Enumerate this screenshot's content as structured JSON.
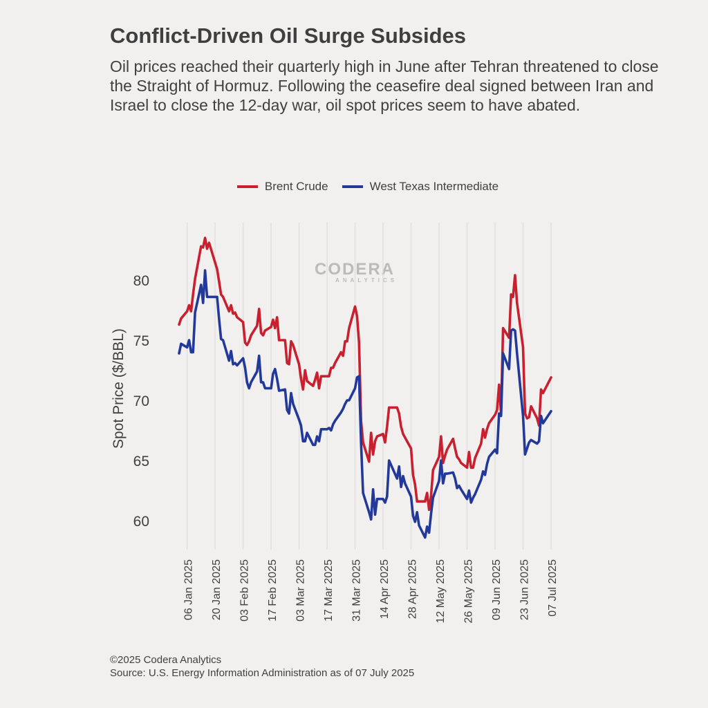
{
  "title": "Conflict-Driven Oil Surge Subsides",
  "subtitle": "Oil prices reached their quarterly high in June after Tehran threatened to close the Straight of Hormuz. Following the ceasefire deal signed between Iran and Israel to close the 12-day war, oil spot prices seem to have abated.",
  "footer": {
    "copyright": "©2025 Codera Analytics",
    "source": "Source: U.S. Energy Information Administration as of 07 July 2025"
  },
  "watermark": {
    "main": "CODERA",
    "sub": "ANALYTICS"
  },
  "colors": {
    "brent": "#c8202f",
    "wti": "#23399a",
    "grid": "#dcdcdc",
    "background": "#f2f0ef"
  },
  "chart_data": {
    "type": "line",
    "xlabel": "",
    "ylabel": "Spot Price ($/BBL)",
    "ylim": [
      58,
      85
    ],
    "yticks": [
      60,
      65,
      70,
      75,
      80
    ],
    "xlim": [
      "2025-01-02",
      "2025-07-07"
    ],
    "xticks": [
      {
        "date": "2025-01-06",
        "label": "06 Jan 2025"
      },
      {
        "date": "2025-01-20",
        "label": "20 Jan 2025"
      },
      {
        "date": "2025-02-03",
        "label": "03 Feb 2025"
      },
      {
        "date": "2025-02-17",
        "label": "17 Feb 2025"
      },
      {
        "date": "2025-03-03",
        "label": "03 Mar 2025"
      },
      {
        "date": "2025-03-17",
        "label": "17 Mar 2025"
      },
      {
        "date": "2025-03-31",
        "label": "31 Mar 2025"
      },
      {
        "date": "2025-04-14",
        "label": "14 Apr 2025"
      },
      {
        "date": "2025-04-28",
        "label": "28 Apr 2025"
      },
      {
        "date": "2025-05-12",
        "label": "12 May 2025"
      },
      {
        "date": "2025-05-26",
        "label": "26 May 2025"
      },
      {
        "date": "2025-06-09",
        "label": "09 Jun 2025"
      },
      {
        "date": "2025-06-23",
        "label": "23 Jun 2025"
      },
      {
        "date": "2025-07-07",
        "label": "07 Jul 2025"
      }
    ],
    "grid": "vertical",
    "legend_position": "top-center",
    "series": [
      {
        "name": "Brent Crude",
        "color": "#c8202f",
        "points": [
          [
            "2025-01-02",
            76.3
          ],
          [
            "2025-01-03",
            76.8
          ],
          [
            "2025-01-06",
            77.4
          ],
          [
            "2025-01-07",
            77.9
          ],
          [
            "2025-01-08",
            77.4
          ],
          [
            "2025-01-09",
            78.8
          ],
          [
            "2025-01-10",
            80.1
          ],
          [
            "2025-01-13",
            82.8
          ],
          [
            "2025-01-14",
            82.7
          ],
          [
            "2025-01-15",
            83.5
          ],
          [
            "2025-01-16",
            82.6
          ],
          [
            "2025-01-17",
            83.1
          ],
          [
            "2025-01-21",
            80.9
          ],
          [
            "2025-01-22",
            79.9
          ],
          [
            "2025-01-23",
            78.8
          ],
          [
            "2025-01-24",
            78.6
          ],
          [
            "2025-01-27",
            77.4
          ],
          [
            "2025-01-28",
            77.9
          ],
          [
            "2025-01-29",
            77.2
          ],
          [
            "2025-01-30",
            77.3
          ],
          [
            "2025-01-31",
            76.9
          ],
          [
            "2025-02-03",
            76.5
          ],
          [
            "2025-02-04",
            74.8
          ],
          [
            "2025-02-05",
            74.6
          ],
          [
            "2025-02-06",
            74.9
          ],
          [
            "2025-02-07",
            75.4
          ],
          [
            "2025-02-10",
            76.2
          ],
          [
            "2025-02-11",
            77.6
          ],
          [
            "2025-02-12",
            75.6
          ],
          [
            "2025-02-13",
            75.4
          ],
          [
            "2025-02-14",
            75.8
          ],
          [
            "2025-02-17",
            76.1
          ],
          [
            "2025-02-18",
            76.7
          ],
          [
            "2025-02-19",
            76.0
          ],
          [
            "2025-02-20",
            76.9
          ],
          [
            "2025-02-21",
            75.0
          ],
          [
            "2025-02-24",
            75.0
          ],
          [
            "2025-02-25",
            73.1
          ],
          [
            "2025-02-26",
            73.0
          ],
          [
            "2025-02-27",
            74.9
          ],
          [
            "2025-02-28",
            74.6
          ],
          [
            "2025-03-03",
            73.0
          ],
          [
            "2025-03-04",
            71.8
          ],
          [
            "2025-03-05",
            70.9
          ],
          [
            "2025-03-06",
            72.5
          ],
          [
            "2025-03-07",
            71.6
          ],
          [
            "2025-03-10",
            71.2
          ],
          [
            "2025-03-11",
            71.7
          ],
          [
            "2025-03-12",
            72.3
          ],
          [
            "2025-03-13",
            71.0
          ],
          [
            "2025-03-14",
            72.0
          ],
          [
            "2025-03-17",
            72.0
          ],
          [
            "2025-03-18",
            72.0
          ],
          [
            "2025-03-19",
            72.7
          ],
          [
            "2025-03-20",
            72.7
          ],
          [
            "2025-03-21",
            73.1
          ],
          [
            "2025-03-24",
            74.0
          ],
          [
            "2025-03-25",
            73.7
          ],
          [
            "2025-03-26",
            74.9
          ],
          [
            "2025-03-27",
            74.9
          ],
          [
            "2025-03-28",
            76.0
          ],
          [
            "2025-03-31",
            77.8
          ],
          [
            "2025-04-01",
            77.0
          ],
          [
            "2025-04-02",
            74.8
          ],
          [
            "2025-04-03",
            68.3
          ],
          [
            "2025-04-04",
            66.5
          ],
          [
            "2025-04-07",
            64.9
          ],
          [
            "2025-04-08",
            67.3
          ],
          [
            "2025-04-09",
            65.5
          ],
          [
            "2025-04-10",
            66.6
          ],
          [
            "2025-04-11",
            67.0
          ],
          [
            "2025-04-14",
            67.2
          ],
          [
            "2025-04-15",
            66.5
          ],
          [
            "2025-04-16",
            67.8
          ],
          [
            "2025-04-17",
            69.4
          ],
          [
            "2025-04-21",
            69.4
          ],
          [
            "2025-04-22",
            68.9
          ],
          [
            "2025-04-23",
            67.8
          ],
          [
            "2025-04-24",
            67.2
          ],
          [
            "2025-04-25",
            66.9
          ],
          [
            "2025-04-28",
            66.0
          ],
          [
            "2025-04-29",
            63.8
          ],
          [
            "2025-04-30",
            63.0
          ],
          [
            "2025-05-01",
            61.6
          ],
          [
            "2025-05-02",
            61.6
          ],
          [
            "2025-05-05",
            61.6
          ],
          [
            "2025-05-06",
            62.3
          ],
          [
            "2025-05-07",
            60.9
          ],
          [
            "2025-05-08",
            62.1
          ],
          [
            "2025-05-09",
            64.2
          ],
          [
            "2025-05-12",
            65.3
          ],
          [
            "2025-05-13",
            67.0
          ],
          [
            "2025-05-14",
            64.8
          ],
          [
            "2025-05-15",
            65.4
          ],
          [
            "2025-05-16",
            65.9
          ],
          [
            "2025-05-19",
            66.8
          ],
          [
            "2025-05-20",
            66.0
          ],
          [
            "2025-05-21",
            65.3
          ],
          [
            "2025-05-22",
            65.1
          ],
          [
            "2025-05-23",
            64.8
          ],
          [
            "2025-05-26",
            64.4
          ],
          [
            "2025-05-27",
            65.7
          ],
          [
            "2025-05-28",
            64.4
          ],
          [
            "2025-05-29",
            64.4
          ],
          [
            "2025-05-30",
            65.2
          ],
          [
            "2025-06-02",
            66.4
          ],
          [
            "2025-06-03",
            67.6
          ],
          [
            "2025-06-04",
            66.9
          ],
          [
            "2025-06-05",
            67.6
          ],
          [
            "2025-06-06",
            68.1
          ],
          [
            "2025-06-09",
            68.8
          ],
          [
            "2025-06-10",
            69.2
          ],
          [
            "2025-06-11",
            71.3
          ],
          [
            "2025-06-12",
            68.9
          ],
          [
            "2025-06-13",
            76.0
          ],
          [
            "2025-06-16",
            75.2
          ],
          [
            "2025-06-17",
            78.8
          ],
          [
            "2025-06-18",
            78.6
          ],
          [
            "2025-06-19",
            80.4
          ],
          [
            "2025-06-20",
            78.1
          ],
          [
            "2025-06-23",
            74.4
          ],
          [
            "2025-06-24",
            68.9
          ],
          [
            "2025-06-25",
            68.5
          ],
          [
            "2025-06-26",
            68.6
          ],
          [
            "2025-06-27",
            69.5
          ],
          [
            "2025-06-30",
            68.5
          ],
          [
            "2025-07-01",
            67.9
          ],
          [
            "2025-07-02",
            70.9
          ],
          [
            "2025-07-03",
            70.6
          ],
          [
            "2025-07-07",
            71.9
          ]
        ]
      },
      {
        "name": "West Texas Intermediate",
        "color": "#23399a",
        "points": [
          [
            "2025-01-02",
            73.9
          ],
          [
            "2025-01-03",
            74.7
          ],
          [
            "2025-01-06",
            74.4
          ],
          [
            "2025-01-07",
            75.0
          ],
          [
            "2025-01-08",
            74.0
          ],
          [
            "2025-01-09",
            74.0
          ],
          [
            "2025-01-10",
            77.3
          ],
          [
            "2025-01-13",
            79.6
          ],
          [
            "2025-01-14",
            78.1
          ],
          [
            "2025-01-15",
            80.8
          ],
          [
            "2025-01-16",
            78.6
          ],
          [
            "2025-01-17",
            78.6
          ],
          [
            "2025-01-21",
            78.6
          ],
          [
            "2025-01-22",
            76.8
          ],
          [
            "2025-01-23",
            75.1
          ],
          [
            "2025-01-24",
            75.0
          ],
          [
            "2025-01-27",
            73.3
          ],
          [
            "2025-01-28",
            74.1
          ],
          [
            "2025-01-29",
            73.0
          ],
          [
            "2025-01-30",
            73.1
          ],
          [
            "2025-01-31",
            72.9
          ],
          [
            "2025-02-03",
            73.5
          ],
          [
            "2025-02-04",
            72.7
          ],
          [
            "2025-02-05",
            71.5
          ],
          [
            "2025-02-06",
            71.0
          ],
          [
            "2025-02-07",
            71.5
          ],
          [
            "2025-02-10",
            72.4
          ],
          [
            "2025-02-11",
            73.7
          ],
          [
            "2025-02-12",
            71.5
          ],
          [
            "2025-02-13",
            71.5
          ],
          [
            "2025-02-14",
            71.0
          ],
          [
            "2025-02-17",
            71.0
          ],
          [
            "2025-02-18",
            72.2
          ],
          [
            "2025-02-19",
            72.6
          ],
          [
            "2025-02-20",
            71.8
          ],
          [
            "2025-02-21",
            70.8
          ],
          [
            "2025-02-24",
            70.9
          ],
          [
            "2025-02-25",
            69.2
          ],
          [
            "2025-02-26",
            68.9
          ],
          [
            "2025-02-27",
            70.6
          ],
          [
            "2025-02-28",
            69.7
          ],
          [
            "2025-03-03",
            68.4
          ],
          [
            "2025-03-04",
            67.9
          ],
          [
            "2025-03-05",
            66.6
          ],
          [
            "2025-03-06",
            66.6
          ],
          [
            "2025-03-07",
            67.3
          ],
          [
            "2025-03-10",
            66.3
          ],
          [
            "2025-03-11",
            66.3
          ],
          [
            "2025-03-12",
            67.0
          ],
          [
            "2025-03-13",
            66.6
          ],
          [
            "2025-03-14",
            67.6
          ],
          [
            "2025-03-17",
            67.6
          ],
          [
            "2025-03-18",
            67.7
          ],
          [
            "2025-03-19",
            67.5
          ],
          [
            "2025-03-20",
            68.0
          ],
          [
            "2025-03-21",
            68.3
          ],
          [
            "2025-03-24",
            69.0
          ],
          [
            "2025-03-25",
            69.3
          ],
          [
            "2025-03-26",
            69.7
          ],
          [
            "2025-03-27",
            70.0
          ],
          [
            "2025-03-28",
            70.0
          ],
          [
            "2025-03-31",
            71.0
          ],
          [
            "2025-04-01",
            71.9
          ],
          [
            "2025-04-02",
            72.0
          ],
          [
            "2025-04-03",
            66.5
          ],
          [
            "2025-04-04",
            62.3
          ],
          [
            "2025-04-07",
            60.7
          ],
          [
            "2025-04-08",
            60.1
          ],
          [
            "2025-04-09",
            62.6
          ],
          [
            "2025-04-10",
            60.5
          ],
          [
            "2025-04-11",
            61.8
          ],
          [
            "2025-04-14",
            61.8
          ],
          [
            "2025-04-15",
            61.5
          ],
          [
            "2025-04-16",
            62.0
          ],
          [
            "2025-04-17",
            65.0
          ],
          [
            "2025-04-21",
            63.5
          ],
          [
            "2025-04-22",
            64.5
          ],
          [
            "2025-04-23",
            62.8
          ],
          [
            "2025-04-24",
            63.7
          ],
          [
            "2025-04-25",
            63.1
          ],
          [
            "2025-04-28",
            62.0
          ],
          [
            "2025-04-29",
            60.4
          ],
          [
            "2025-04-30",
            59.9
          ],
          [
            "2025-05-01",
            60.7
          ],
          [
            "2025-05-02",
            59.6
          ],
          [
            "2025-05-05",
            58.6
          ],
          [
            "2025-05-06",
            59.5
          ],
          [
            "2025-05-07",
            59.0
          ],
          [
            "2025-05-08",
            60.6
          ],
          [
            "2025-05-09",
            61.9
          ],
          [
            "2025-05-12",
            63.3
          ],
          [
            "2025-05-13",
            65.0
          ],
          [
            "2025-05-14",
            63.1
          ],
          [
            "2025-05-15",
            63.9
          ],
          [
            "2025-05-16",
            63.9
          ],
          [
            "2025-05-19",
            64.0
          ],
          [
            "2025-05-20",
            63.5
          ],
          [
            "2025-05-21",
            62.7
          ],
          [
            "2025-05-22",
            62.9
          ],
          [
            "2025-05-23",
            62.6
          ],
          [
            "2025-05-26",
            61.8
          ],
          [
            "2025-05-27",
            62.5
          ],
          [
            "2025-05-28",
            61.5
          ],
          [
            "2025-05-29",
            61.9
          ],
          [
            "2025-05-30",
            62.2
          ],
          [
            "2025-06-02",
            63.4
          ],
          [
            "2025-06-03",
            64.1
          ],
          [
            "2025-06-04",
            63.8
          ],
          [
            "2025-06-05",
            64.7
          ],
          [
            "2025-06-06",
            65.3
          ],
          [
            "2025-06-09",
            65.9
          ],
          [
            "2025-06-10",
            65.6
          ],
          [
            "2025-06-11",
            68.9
          ],
          [
            "2025-06-12",
            68.7
          ],
          [
            "2025-06-13",
            73.9
          ],
          [
            "2025-06-16",
            72.6
          ],
          [
            "2025-06-17",
            75.8
          ],
          [
            "2025-06-18",
            75.9
          ],
          [
            "2025-06-19",
            75.8
          ],
          [
            "2025-06-20",
            73.9
          ],
          [
            "2025-06-23",
            68.7
          ],
          [
            "2025-06-24",
            65.5
          ],
          [
            "2025-06-25",
            66.0
          ],
          [
            "2025-06-26",
            66.5
          ],
          [
            "2025-06-27",
            66.7
          ],
          [
            "2025-06-30",
            66.4
          ],
          [
            "2025-07-01",
            66.6
          ],
          [
            "2025-07-02",
            68.7
          ],
          [
            "2025-07-03",
            68.1
          ],
          [
            "2025-07-07",
            69.1
          ]
        ]
      }
    ]
  }
}
